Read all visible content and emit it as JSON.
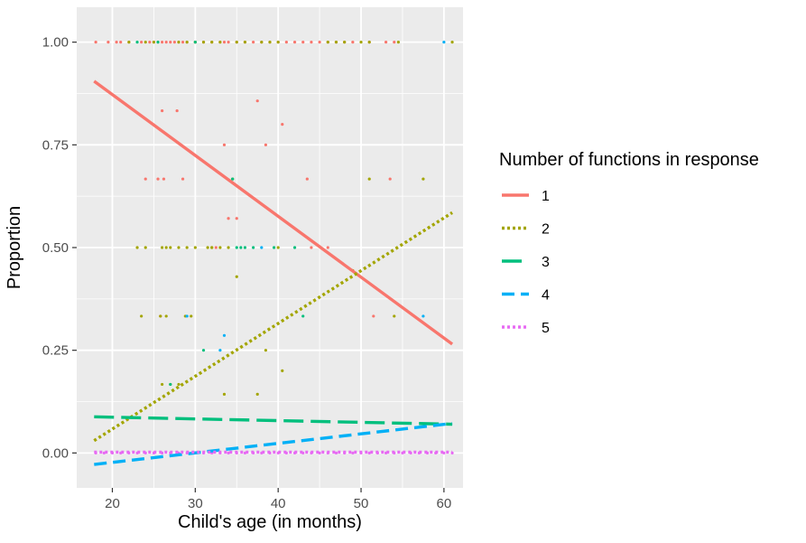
{
  "chart_data": {
    "type": "scatter",
    "xlabel": "Child's age (in months)",
    "ylabel": "Proportion",
    "xlim": [
      15.7,
      62.3
    ],
    "ylim": [
      -0.085,
      1.085
    ],
    "x_ticks": [
      20,
      30,
      40,
      50,
      60
    ],
    "x_tick_labels": [
      "20",
      "30",
      "40",
      "50",
      "60"
    ],
    "y_ticks": [
      0,
      0.25,
      0.5,
      0.75,
      1.0
    ],
    "y_tick_labels": [
      "0.00",
      "0.25",
      "0.50",
      "0.75",
      "1.00"
    ],
    "grid": true,
    "panel_background": "#ebebeb",
    "legend": {
      "title": "Number of functions in response",
      "position": "right"
    },
    "series": [
      {
        "name": "1",
        "color": "#f8766d",
        "line_style": "solid",
        "trend": [
          [
            17.8,
            0.905
          ],
          [
            61,
            0.265
          ]
        ],
        "points": [
          [
            18,
            1
          ],
          [
            19.5,
            1
          ],
          [
            20.5,
            1
          ],
          [
            21,
            1
          ],
          [
            22,
            1
          ],
          [
            23.5,
            1
          ],
          [
            24.5,
            1
          ],
          [
            25,
            1
          ],
          [
            25.5,
            1
          ],
          [
            26,
            1
          ],
          [
            26.5,
            1
          ],
          [
            27,
            1
          ],
          [
            27.5,
            1
          ],
          [
            28,
            1
          ],
          [
            28.5,
            1
          ],
          [
            29,
            1
          ],
          [
            30,
            1
          ],
          [
            31,
            1
          ],
          [
            32,
            1
          ],
          [
            33,
            1
          ],
          [
            33.5,
            1
          ],
          [
            34,
            1
          ],
          [
            35,
            1
          ],
          [
            36,
            1
          ],
          [
            37,
            1
          ],
          [
            38,
            1
          ],
          [
            39,
            1
          ],
          [
            40,
            1
          ],
          [
            41,
            1
          ],
          [
            42,
            1
          ],
          [
            43,
            1
          ],
          [
            44,
            1
          ],
          [
            45,
            1
          ],
          [
            46,
            1
          ],
          [
            47,
            1
          ],
          [
            48,
            1
          ],
          [
            49,
            1
          ],
          [
            51,
            1
          ],
          [
            53,
            1
          ],
          [
            54,
            1
          ],
          [
            26,
            0.833
          ],
          [
            27.8,
            0.833
          ],
          [
            37.5,
            0.857
          ],
          [
            40.5,
            0.8
          ],
          [
            33.5,
            0.75
          ],
          [
            38.5,
            0.75
          ],
          [
            24,
            0.667
          ],
          [
            25.5,
            0.667
          ],
          [
            26.2,
            0.667
          ],
          [
            28.5,
            0.667
          ],
          [
            43.5,
            0.667
          ],
          [
            53.5,
            0.667
          ],
          [
            34,
            0.571
          ],
          [
            35,
            0.571
          ],
          [
            51.5,
            0.333
          ],
          [
            25.8,
            0.333
          ],
          [
            44,
            0.5
          ],
          [
            46,
            0.5
          ],
          [
            32.5,
            0.5
          ],
          [
            49,
            0.444
          ]
        ]
      },
      {
        "name": "2",
        "color": "#a3a500",
        "line_style": "dotted",
        "trend": [
          [
            17.8,
            0.03
          ],
          [
            61,
            0.585
          ]
        ],
        "points": [
          [
            22,
            1
          ],
          [
            24,
            1
          ],
          [
            25,
            1
          ],
          [
            28,
            1
          ],
          [
            29,
            1
          ],
          [
            30,
            1
          ],
          [
            31,
            1
          ],
          [
            32,
            1
          ],
          [
            33,
            1
          ],
          [
            35,
            1
          ],
          [
            36,
            1
          ],
          [
            38,
            1
          ],
          [
            39,
            1
          ],
          [
            40,
            1
          ],
          [
            46,
            1
          ],
          [
            47,
            1
          ],
          [
            48,
            1
          ],
          [
            50,
            1
          ],
          [
            51,
            1
          ],
          [
            54.5,
            1
          ],
          [
            61,
            1
          ],
          [
            23,
            0.5
          ],
          [
            24,
            0.5
          ],
          [
            26,
            0.5
          ],
          [
            26.5,
            0.5
          ],
          [
            27,
            0.5
          ],
          [
            28,
            0.5
          ],
          [
            29,
            0.5
          ],
          [
            30,
            0.5
          ],
          [
            31.5,
            0.5
          ],
          [
            32,
            0.5
          ],
          [
            33,
            0.5
          ],
          [
            34,
            0.5
          ],
          [
            40,
            0.5
          ],
          [
            23.5,
            0.333
          ],
          [
            25.8,
            0.333
          ],
          [
            26.5,
            0.333
          ],
          [
            28.8,
            0.333
          ],
          [
            29.5,
            0.333
          ],
          [
            51,
            0.667
          ],
          [
            57.5,
            0.667
          ],
          [
            54,
            0.333
          ],
          [
            34.5,
            0.667
          ],
          [
            35,
            0.429
          ],
          [
            38.5,
            0.25
          ],
          [
            26,
            0.167
          ],
          [
            27,
            0.167
          ],
          [
            28,
            0.167
          ],
          [
            40.5,
            0.2
          ],
          [
            33.5,
            0.143
          ],
          [
            37.5,
            0.143
          ],
          [
            49,
            0.444
          ],
          [
            32,
            0.5
          ]
        ]
      },
      {
        "name": "3",
        "color": "#00bf7d",
        "line_style": "longdash",
        "trend": [
          [
            17.8,
            0.088
          ],
          [
            61,
            0.07
          ]
        ],
        "points": [
          [
            23,
            1
          ],
          [
            25.5,
            1
          ],
          [
            30,
            1
          ],
          [
            35,
            0.5
          ],
          [
            35.5,
            0.5
          ],
          [
            36,
            0.5
          ],
          [
            37,
            0.5
          ],
          [
            43,
            0.333
          ],
          [
            27,
            0.167
          ],
          [
            31,
            0.25
          ],
          [
            34.5,
            0.667
          ],
          [
            39.5,
            0.5
          ],
          [
            42,
            0.5
          ]
        ]
      },
      {
        "name": "4",
        "color": "#00b0f6",
        "line_style": "dashed",
        "trend": [
          [
            17.8,
            -0.028
          ],
          [
            61,
            0.072
          ]
        ],
        "points": [
          [
            60,
            1
          ],
          [
            57.5,
            0.333
          ],
          [
            33.5,
            0.286
          ],
          [
            33,
            0.25
          ],
          [
            38,
            0.5
          ],
          [
            29,
            0.333
          ]
        ]
      },
      {
        "name": "5",
        "color": "#e76bf3",
        "line_style": "dotted",
        "trend": [
          [
            17.8,
            0.002
          ],
          [
            61,
            0.002
          ]
        ],
        "points": [
          [
            18,
            0
          ],
          [
            19,
            0
          ],
          [
            20,
            0
          ],
          [
            21,
            0
          ],
          [
            22,
            0
          ],
          [
            23,
            0
          ],
          [
            24,
            0
          ],
          [
            25,
            0
          ],
          [
            26,
            0
          ],
          [
            27,
            0
          ],
          [
            28,
            0
          ],
          [
            29,
            0
          ],
          [
            30,
            0
          ],
          [
            31,
            0
          ],
          [
            32,
            0
          ],
          [
            33,
            0
          ],
          [
            34,
            0
          ],
          [
            35,
            0
          ],
          [
            36,
            0
          ],
          [
            37,
            0
          ],
          [
            38,
            0
          ],
          [
            39,
            0
          ],
          [
            40,
            0
          ],
          [
            41,
            0
          ],
          [
            42,
            0
          ],
          [
            43,
            0
          ],
          [
            44,
            0
          ],
          [
            45,
            0
          ],
          [
            46,
            0
          ],
          [
            47,
            0
          ],
          [
            48,
            0
          ],
          [
            49,
            0
          ],
          [
            50,
            0
          ],
          [
            51,
            0
          ],
          [
            52,
            0
          ],
          [
            53,
            0
          ],
          [
            54,
            0
          ],
          [
            55,
            0
          ],
          [
            56,
            0
          ],
          [
            57,
            0
          ],
          [
            58,
            0
          ],
          [
            59,
            0
          ],
          [
            60,
            0
          ],
          [
            61,
            0
          ]
        ]
      }
    ]
  }
}
